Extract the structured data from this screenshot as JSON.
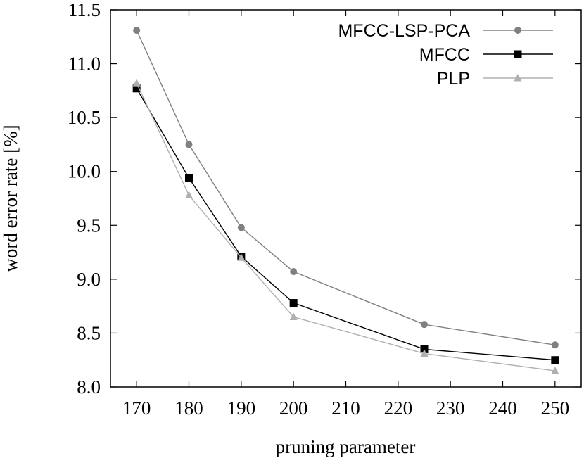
{
  "chart_data": {
    "type": "line",
    "title": "",
    "xlabel": "pruning parameter",
    "ylabel": "word error rate [%]",
    "xlim": [
      165,
      255
    ],
    "ylim": [
      8.0,
      11.5
    ],
    "xticks": [
      170,
      180,
      190,
      200,
      210,
      220,
      230,
      240,
      250
    ],
    "yticks": [
      "8.0",
      "8.5",
      "9.0",
      "9.5",
      "10.0",
      "10.5",
      "11.0",
      "11.5"
    ],
    "legend_position": "top-right",
    "grid": false,
    "series": [
      {
        "name": "MFCC-LSP-PCA",
        "color": "#808080",
        "marker": "circle",
        "x": [
          170,
          180,
          190,
          200,
          225,
          250
        ],
        "y": [
          11.31,
          10.25,
          9.48,
          9.07,
          8.58,
          8.39
        ]
      },
      {
        "name": "MFCC",
        "color": "#000000",
        "marker": "square",
        "x": [
          170,
          180,
          190,
          200,
          225,
          250
        ],
        "y": [
          10.77,
          9.94,
          9.21,
          8.78,
          8.35,
          8.25
        ]
      },
      {
        "name": "PLP",
        "color": "#b0b0b0",
        "marker": "triangle",
        "x": [
          170,
          180,
          190,
          200,
          225,
          250
        ],
        "y": [
          10.82,
          9.78,
          9.2,
          8.65,
          8.31,
          8.15
        ]
      }
    ]
  }
}
